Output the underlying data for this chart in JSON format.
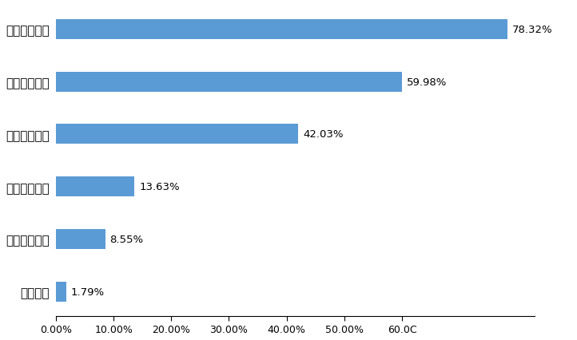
{
  "categories": [
    "交通安全培训",
    "交通法规培训",
    "驾驶技术培训",
    "没有得到培训",
    "车辆维修培训",
    "客服培训"
  ],
  "values": [
    78.32,
    59.98,
    42.03,
    13.63,
    8.55,
    1.79
  ],
  "bar_color": "#5B9BD5",
  "background_color": "#FFFFFF",
  "xlabel_ticks": [
    "0.00%",
    "10.00%",
    "20.00%",
    "30.00%",
    "40.00%",
    "50.00%",
    "60.0C"
  ],
  "x_tick_vals": [
    0,
    10,
    20,
    30,
    40,
    50,
    60
  ],
  "xlim": [
    0,
    83
  ],
  "bar_height": 0.38,
  "label_fontsize": 11,
  "tick_fontsize": 9,
  "value_fontsize": 9.5
}
